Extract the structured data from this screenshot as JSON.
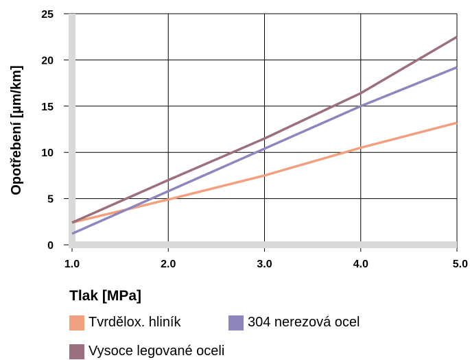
{
  "chart_data": {
    "type": "line",
    "xlabel": "Tlak [MPa]",
    "ylabel": "Opotřebení [µm/km]",
    "xlim": [
      1.0,
      5.0
    ],
    "ylim": [
      0,
      25
    ],
    "x_ticks": [
      "1.0",
      "2.0",
      "3.0",
      "4.0",
      "5.0"
    ],
    "y_ticks": [
      "0",
      "5",
      "10",
      "15",
      "20",
      "25"
    ],
    "grid": true,
    "legend_position": "bottom",
    "series": [
      {
        "name": "Tvrdělox. hliník",
        "color": "#F0A07E",
        "x": [
          1.0,
          2.0,
          3.0,
          4.0,
          5.0
        ],
        "y": [
          2.4,
          4.9,
          7.5,
          10.5,
          13.2
        ]
      },
      {
        "name": "304 nerezová ocel",
        "color": "#8F85BD",
        "x": [
          1.0,
          2.0,
          3.0,
          4.0,
          5.0
        ],
        "y": [
          1.2,
          5.8,
          10.4,
          15.0,
          19.2
        ]
      },
      {
        "name": "Vysoce legované oceli",
        "color": "#9B6F7B",
        "x": [
          1.0,
          2.0,
          3.0,
          4.0,
          5.0
        ],
        "y": [
          2.4,
          7.0,
          11.5,
          16.4,
          22.5
        ]
      }
    ]
  }
}
